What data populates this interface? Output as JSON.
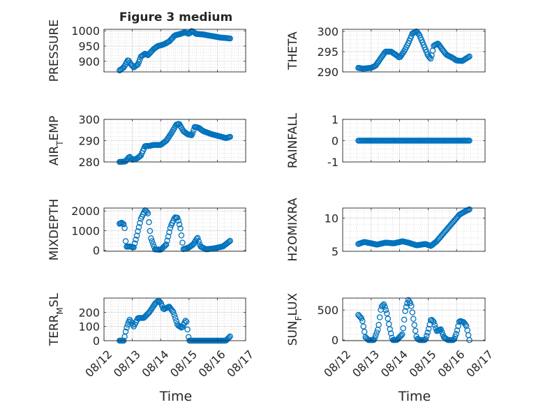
{
  "figure_title": "Figure 3 medium",
  "x_axis": {
    "label": "Time",
    "ticks": [
      "08/12",
      "08/13",
      "08/14",
      "08/15",
      "08/16",
      "08/17"
    ],
    "range_days": [
      12,
      17
    ]
  },
  "marker_color": "#0072BD",
  "chart_data": [
    {
      "type": "scatter",
      "ylabel": "PRESSURE",
      "ylim": [
        865,
        1005
      ],
      "yticks": [
        900,
        950,
        1000
      ],
      "x_day_range": [
        12.55,
        16.45
      ],
      "profile": [
        [
          12.55,
          870
        ],
        [
          12.7,
          880
        ],
        [
          12.85,
          905
        ],
        [
          12.95,
          890
        ],
        [
          13.05,
          880
        ],
        [
          13.2,
          890
        ],
        [
          13.3,
          915
        ],
        [
          13.45,
          925
        ],
        [
          13.55,
          920
        ],
        [
          13.75,
          940
        ],
        [
          13.9,
          950
        ],
        [
          14.1,
          955
        ],
        [
          14.3,
          965
        ],
        [
          14.5,
          985
        ],
        [
          14.7,
          990
        ],
        [
          14.85,
          995
        ],
        [
          15.0,
          990
        ],
        [
          15.1,
          1000
        ],
        [
          15.25,
          990
        ],
        [
          15.5,
          988
        ],
        [
          15.8,
          983
        ],
        [
          16.1,
          978
        ],
        [
          16.45,
          975
        ]
      ]
    },
    {
      "type": "scatter",
      "ylabel": "THETA",
      "ylim": [
        290,
        300.5
      ],
      "yticks": [
        290,
        295,
        300
      ],
      "x_day_range": [
        12.55,
        16.45
      ],
      "profile": [
        [
          12.55,
          291
        ],
        [
          12.7,
          290.8
        ],
        [
          12.85,
          290.9
        ],
        [
          13.0,
          291.0
        ],
        [
          13.15,
          291.5
        ],
        [
          13.3,
          293
        ],
        [
          13.5,
          295
        ],
        [
          13.7,
          295
        ],
        [
          13.85,
          294.3
        ],
        [
          14.0,
          293.5
        ],
        [
          14.15,
          295
        ],
        [
          14.3,
          297
        ],
        [
          14.45,
          299.5
        ],
        [
          14.6,
          300
        ],
        [
          14.7,
          299
        ],
        [
          14.85,
          296.5
        ],
        [
          15.0,
          294
        ],
        [
          15.1,
          293.2
        ],
        [
          15.2,
          296.5
        ],
        [
          15.35,
          297
        ],
        [
          15.5,
          295.5
        ],
        [
          15.65,
          294.2
        ],
        [
          15.85,
          293.5
        ],
        [
          16.0,
          292.8
        ],
        [
          16.2,
          292.7
        ],
        [
          16.45,
          293.8
        ]
      ]
    },
    {
      "type": "scatter",
      "ylabel": "AIR_TEMP",
      "ylim": [
        280,
        300
      ],
      "yticks": [
        280,
        290,
        300
      ],
      "x_day_range": [
        12.55,
        16.45
      ],
      "profile": [
        [
          12.55,
          280
        ],
        [
          12.75,
          280.2
        ],
        [
          12.9,
          282.5
        ],
        [
          13.0,
          281
        ],
        [
          13.15,
          281.5
        ],
        [
          13.3,
          283
        ],
        [
          13.45,
          287.5
        ],
        [
          13.6,
          287.5
        ],
        [
          13.75,
          288
        ],
        [
          14.0,
          288
        ],
        [
          14.2,
          290
        ],
        [
          14.4,
          294
        ],
        [
          14.55,
          297.5
        ],
        [
          14.65,
          298
        ],
        [
          14.8,
          294.5
        ],
        [
          14.95,
          293
        ],
        [
          15.1,
          292.5
        ],
        [
          15.2,
          296.5
        ],
        [
          15.35,
          296
        ],
        [
          15.5,
          294.5
        ],
        [
          15.8,
          293
        ],
        [
          16.1,
          292
        ],
        [
          16.3,
          291.2
        ],
        [
          16.45,
          291.8
        ]
      ]
    },
    {
      "type": "scatter",
      "ylabel": "RAINFALL",
      "ylim": [
        -1,
        1
      ],
      "yticks": [
        -1,
        0,
        1
      ],
      "x_day_range": [
        12.55,
        16.45
      ],
      "profile": [
        [
          12.55,
          0
        ],
        [
          16.45,
          0
        ]
      ]
    },
    {
      "type": "scatter",
      "ylabel": "MIXDEPTH",
      "ylim": [
        -50,
        2150
      ],
      "yticks": [
        0,
        1000,
        2000
      ],
      "x_day_range": [
        12.55,
        16.45
      ],
      "profile": [
        [
          12.55,
          1350
        ],
        [
          12.62,
          1400
        ],
        [
          12.72,
          1300
        ],
        [
          12.78,
          180
        ],
        [
          12.9,
          200
        ],
        [
          13.05,
          150
        ],
        [
          13.15,
          700
        ],
        [
          13.3,
          1600
        ],
        [
          13.45,
          2050
        ],
        [
          13.55,
          1900
        ],
        [
          13.65,
          650
        ],
        [
          13.8,
          50
        ],
        [
          14.0,
          30
        ],
        [
          14.2,
          300
        ],
        [
          14.35,
          1200
        ],
        [
          14.5,
          1680
        ],
        [
          14.6,
          1650
        ],
        [
          14.7,
          1100
        ],
        [
          14.8,
          60
        ],
        [
          15.0,
          150
        ],
        [
          15.15,
          300
        ],
        [
          15.3,
          650
        ],
        [
          15.4,
          200
        ],
        [
          15.6,
          50
        ],
        [
          15.9,
          100
        ],
        [
          16.2,
          200
        ],
        [
          16.45,
          480
        ]
      ]
    },
    {
      "type": "scatter",
      "ylabel": "H2OMIXRA",
      "ylim": [
        5,
        11.5
      ],
      "yticks": [
        5,
        10
      ],
      "x_day_range": [
        12.55,
        16.45
      ],
      "profile": [
        [
          12.55,
          6.1
        ],
        [
          12.75,
          6.4
        ],
        [
          13.0,
          6.2
        ],
        [
          13.2,
          6.0
        ],
        [
          13.5,
          6.3
        ],
        [
          13.8,
          6.2
        ],
        [
          14.1,
          6.5
        ],
        [
          14.3,
          6.3
        ],
        [
          14.6,
          5.9
        ],
        [
          14.9,
          6.1
        ],
        [
          15.1,
          5.8
        ],
        [
          15.3,
          6.5
        ],
        [
          15.5,
          7.5
        ],
        [
          15.7,
          8.5
        ],
        [
          15.9,
          9.5
        ],
        [
          16.1,
          10.5
        ],
        [
          16.3,
          11.0
        ],
        [
          16.45,
          11.3
        ]
      ]
    },
    {
      "type": "scatter",
      "ylabel": "TERR_MSL",
      "ylim": [
        0,
        300
      ],
      "yticks": [
        0,
        100,
        200
      ],
      "x_day_range": [
        12.55,
        16.45
      ],
      "profile": [
        [
          12.55,
          0
        ],
        [
          12.7,
          0
        ],
        [
          12.78,
          80
        ],
        [
          12.9,
          150
        ],
        [
          13.05,
          100
        ],
        [
          13.2,
          160
        ],
        [
          13.4,
          160
        ],
        [
          13.6,
          200
        ],
        [
          13.8,
          260
        ],
        [
          13.9,
          280
        ],
        [
          14.0,
          270
        ],
        [
          14.1,
          220
        ],
        [
          14.3,
          240
        ],
        [
          14.45,
          200
        ],
        [
          14.6,
          110
        ],
        [
          14.75,
          90
        ],
        [
          14.9,
          150
        ],
        [
          15.0,
          0
        ],
        [
          15.2,
          0
        ],
        [
          15.6,
          0
        ],
        [
          16.0,
          0
        ],
        [
          16.3,
          0
        ],
        [
          16.45,
          30
        ]
      ]
    },
    {
      "type": "scatter",
      "ylabel": "SUN_FLUX",
      "ylim": [
        -10,
        700
      ],
      "yticks": [
        0,
        500
      ],
      "x_day_range": [
        12.55,
        16.45
      ],
      "profile": [
        [
          12.55,
          420
        ],
        [
          12.68,
          350
        ],
        [
          12.8,
          50
        ],
        [
          12.9,
          0
        ],
        [
          13.1,
          0
        ],
        [
          13.25,
          200
        ],
        [
          13.35,
          550
        ],
        [
          13.45,
          600
        ],
        [
          13.55,
          450
        ],
        [
          13.65,
          200
        ],
        [
          13.75,
          0
        ],
        [
          13.9,
          0
        ],
        [
          14.1,
          100
        ],
        [
          14.2,
          500
        ],
        [
          14.3,
          670
        ],
        [
          14.4,
          600
        ],
        [
          14.5,
          300
        ],
        [
          14.6,
          30
        ],
        [
          14.7,
          0
        ],
        [
          14.9,
          0
        ],
        [
          15.0,
          150
        ],
        [
          15.1,
          350
        ],
        [
          15.2,
          300
        ],
        [
          15.3,
          150
        ],
        [
          15.45,
          180
        ],
        [
          15.55,
          50
        ],
        [
          15.7,
          0
        ],
        [
          15.9,
          0
        ],
        [
          16.0,
          120
        ],
        [
          16.1,
          320
        ],
        [
          16.25,
          300
        ],
        [
          16.35,
          230
        ],
        [
          16.45,
          0
        ]
      ]
    }
  ]
}
